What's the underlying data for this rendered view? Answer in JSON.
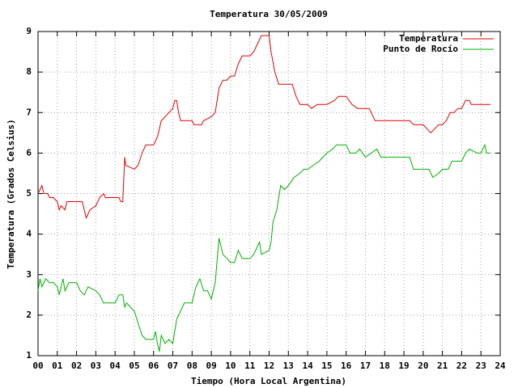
{
  "chart_data": {
    "type": "line",
    "title": "Temperatura 30/05/2009",
    "x_label": "Tiempo (Hora Local Argentina)",
    "y_label": "Temperatura (Grados Celsius)",
    "xlim": [
      0,
      24
    ],
    "ylim": [
      1,
      9
    ],
    "xticks": [
      {
        "value": 0,
        "label": "00"
      },
      {
        "value": 1,
        "label": "01"
      },
      {
        "value": 2,
        "label": "02"
      },
      {
        "value": 3,
        "label": "03"
      },
      {
        "value": 4,
        "label": "04"
      },
      {
        "value": 5,
        "label": "05"
      },
      {
        "value": 6,
        "label": "06"
      },
      {
        "value": 7,
        "label": "07"
      },
      {
        "value": 8,
        "label": "08"
      },
      {
        "value": 9,
        "label": "09"
      },
      10,
      11,
      12,
      13,
      14,
      15,
      16,
      17,
      18,
      19,
      20,
      21,
      22,
      23,
      24
    ],
    "yticks": [
      1,
      2,
      3,
      4,
      5,
      6,
      7,
      8,
      9
    ],
    "grid": true,
    "legend": "top-right",
    "series": [
      {
        "name": "Temperatura",
        "color": "#e00000",
        "x": [
          0,
          0.2,
          0.3,
          0.5,
          0.6,
          0.8,
          1.0,
          1.1,
          1.2,
          1.4,
          1.5,
          2.0,
          2.3,
          2.4,
          2.5,
          2.7,
          3.0,
          3.2,
          3.4,
          3.5,
          4.0,
          4.2,
          4.3,
          4.4,
          4.5,
          4.55,
          5.0,
          5.2,
          5.4,
          5.6,
          6.0,
          6.2,
          6.4,
          6.6,
          6.8,
          7.0,
          7.1,
          7.2,
          7.3,
          7.4,
          8.0,
          8.1,
          8.5,
          8.6,
          9.0,
          9.2,
          9.4,
          9.6,
          9.8,
          10.0,
          10.2,
          10.4,
          10.6,
          11.0,
          11.2,
          11.4,
          11.6,
          12.0,
          12.1,
          12.3,
          12.5,
          12.7,
          13.2,
          13.4,
          13.6,
          14.0,
          14.2,
          14.5,
          15.0,
          15.4,
          15.6,
          16.0,
          16.3,
          16.6,
          17.0,
          17.2,
          17.5,
          18.0,
          19.0,
          19.3,
          19.5,
          20.0,
          20.2,
          20.4,
          20.6,
          20.8,
          21.0,
          21.2,
          21.4,
          21.6,
          21.8,
          22.0,
          22.2,
          22.4,
          22.5,
          23.0,
          23.5
        ],
        "values": [
          5.0,
          5.2,
          5.0,
          5.0,
          4.9,
          4.9,
          4.8,
          4.6,
          4.7,
          4.6,
          4.8,
          4.8,
          4.8,
          4.6,
          4.4,
          4.6,
          4.7,
          4.9,
          5.0,
          4.9,
          4.9,
          4.9,
          4.8,
          4.8,
          5.9,
          5.7,
          5.6,
          5.7,
          6.0,
          6.2,
          6.2,
          6.4,
          6.8,
          6.9,
          7.0,
          7.1,
          7.3,
          7.3,
          7.0,
          6.8,
          6.8,
          6.7,
          6.7,
          6.8,
          6.9,
          7.0,
          7.6,
          7.8,
          7.8,
          7.9,
          7.9,
          8.2,
          8.4,
          8.4,
          8.5,
          8.7,
          8.9,
          8.9,
          8.5,
          8.0,
          7.7,
          7.7,
          7.7,
          7.4,
          7.2,
          7.2,
          7.1,
          7.2,
          7.2,
          7.3,
          7.4,
          7.4,
          7.2,
          7.1,
          7.1,
          7.1,
          6.8,
          6.8,
          6.8,
          6.8,
          6.7,
          6.7,
          6.6,
          6.5,
          6.6,
          6.7,
          6.7,
          6.8,
          7.0,
          7.0,
          7.1,
          7.1,
          7.3,
          7.3,
          7.2,
          7.2,
          7.2
        ]
      },
      {
        "name": "Punto de Rocío",
        "color": "#00b000",
        "x": [
          0,
          0.1,
          0.2,
          0.4,
          0.6,
          0.8,
          1.0,
          1.1,
          1.2,
          1.3,
          1.4,
          1.6,
          2.0,
          2.2,
          2.4,
          2.6,
          3.0,
          3.2,
          3.4,
          3.8,
          4.0,
          4.2,
          4.4,
          4.5,
          4.6,
          5.0,
          5.2,
          5.4,
          5.6,
          6.0,
          6.1,
          6.2,
          6.3,
          6.4,
          6.6,
          6.8,
          7.0,
          7.1,
          7.2,
          7.4,
          7.6,
          8.0,
          8.2,
          8.4,
          8.6,
          8.8,
          9.0,
          9.2,
          9.4,
          9.6,
          9.8,
          10.0,
          10.2,
          10.4,
          10.6,
          11.0,
          11.2,
          11.5,
          11.6,
          12.0,
          12.1,
          12.2,
          12.4,
          12.6,
          12.8,
          13.0,
          13.3,
          13.6,
          13.8,
          14.0,
          14.3,
          14.6,
          15.0,
          15.3,
          15.5,
          16.0,
          16.2,
          16.5,
          16.7,
          17.0,
          17.3,
          17.6,
          17.8,
          18.5,
          19.0,
          19.3,
          19.5,
          20.0,
          20.3,
          20.5,
          20.8,
          21.0,
          21.3,
          21.5,
          22.0,
          22.2,
          22.4,
          22.8,
          23.0,
          23.2,
          23.3,
          23.5
        ],
        "values": [
          2.6,
          2.9,
          2.7,
          2.9,
          2.8,
          2.8,
          2.7,
          2.5,
          2.7,
          2.9,
          2.6,
          2.8,
          2.8,
          2.6,
          2.5,
          2.7,
          2.6,
          2.5,
          2.3,
          2.3,
          2.3,
          2.5,
          2.5,
          2.2,
          2.3,
          2.1,
          1.8,
          1.5,
          1.4,
          1.4,
          1.6,
          1.3,
          1.1,
          1.5,
          1.3,
          1.4,
          1.3,
          1.6,
          1.9,
          2.1,
          2.3,
          2.3,
          2.7,
          2.9,
          2.6,
          2.6,
          2.4,
          2.8,
          3.9,
          3.5,
          3.4,
          3.3,
          3.3,
          3.6,
          3.4,
          3.4,
          3.5,
          3.8,
          3.5,
          3.6,
          3.8,
          4.3,
          4.6,
          5.2,
          5.1,
          5.2,
          5.4,
          5.5,
          5.6,
          5.6,
          5.7,
          5.8,
          6.0,
          6.1,
          6.2,
          6.2,
          6.0,
          6.0,
          6.1,
          5.9,
          6.0,
          6.1,
          5.9,
          5.9,
          5.9,
          5.9,
          5.6,
          5.6,
          5.6,
          5.4,
          5.5,
          5.6,
          5.6,
          5.8,
          5.8,
          6.0,
          6.1,
          6.0,
          6.0,
          6.2,
          6.0,
          6.0
        ]
      }
    ]
  }
}
